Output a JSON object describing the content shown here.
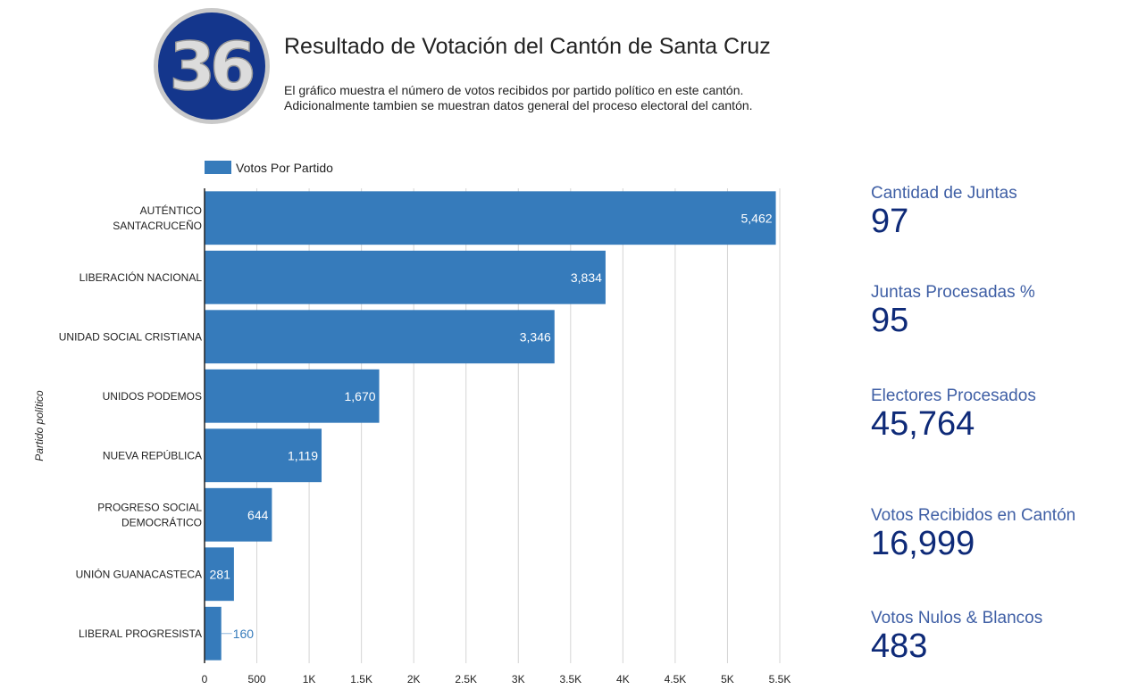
{
  "header": {
    "logo_text": "36",
    "title": "Resultado de Votación del Cantón de Santa Cruz",
    "subtitle_lines": [
      "El gráfico muestra el número de votos recibidos por partido político en este cantón.",
      "Adicionalmente tambien se muestran datos general del proceso electoral del cantón."
    ]
  },
  "chart_data": {
    "type": "bar",
    "orientation": "horizontal",
    "categories": [
      [
        "AUTÉNTICO",
        "SANTACRUCEÑO"
      ],
      [
        "LIBERACIÓN NACIONAL"
      ],
      [
        "UNIDAD SOCIAL CRISTIANA"
      ],
      [
        "UNIDOS PODEMOS"
      ],
      [
        "NUEVA REPÚBLICA"
      ],
      [
        "PROGRESO SOCIAL",
        "DEMOCRÁTICO"
      ],
      [
        "UNIÓN GUANACASTECA"
      ],
      [
        "LIBERAL PROGRESISTA"
      ]
    ],
    "series": [
      {
        "name": "Votos Por Partido",
        "values": [
          5462,
          3834,
          3346,
          1670,
          1119,
          644,
          281,
          160
        ],
        "labels": [
          "5,462",
          "3,834",
          "3,346",
          "1,670",
          "1,119",
          "644",
          "281",
          "160"
        ]
      }
    ],
    "ylabel": "Partido político",
    "xlim": [
      0,
      5500
    ],
    "xticks": [
      0,
      500,
      1000,
      1500,
      2000,
      2500,
      3000,
      3500,
      4000,
      4500,
      5000,
      5500
    ],
    "xtick_labels": [
      "0",
      "500",
      "1K",
      "1.5K",
      "2K",
      "2.5K",
      "3K",
      "3.5K",
      "4K",
      "4.5K",
      "5K",
      "5.5K"
    ],
    "grid": true,
    "legend_position": "top-left",
    "bar_color": "#367bbb"
  },
  "kpis": [
    {
      "label": "Cantidad de Juntas",
      "value": "97"
    },
    {
      "label": "Juntas Procesadas %",
      "value": "95"
    },
    {
      "label": "Electores Procesados",
      "value": "45,764"
    },
    {
      "label": "Votos Recibidos en Cantón",
      "value": "16,999"
    },
    {
      "label": "Votos Nulos & Blancos",
      "value": "483"
    }
  ]
}
